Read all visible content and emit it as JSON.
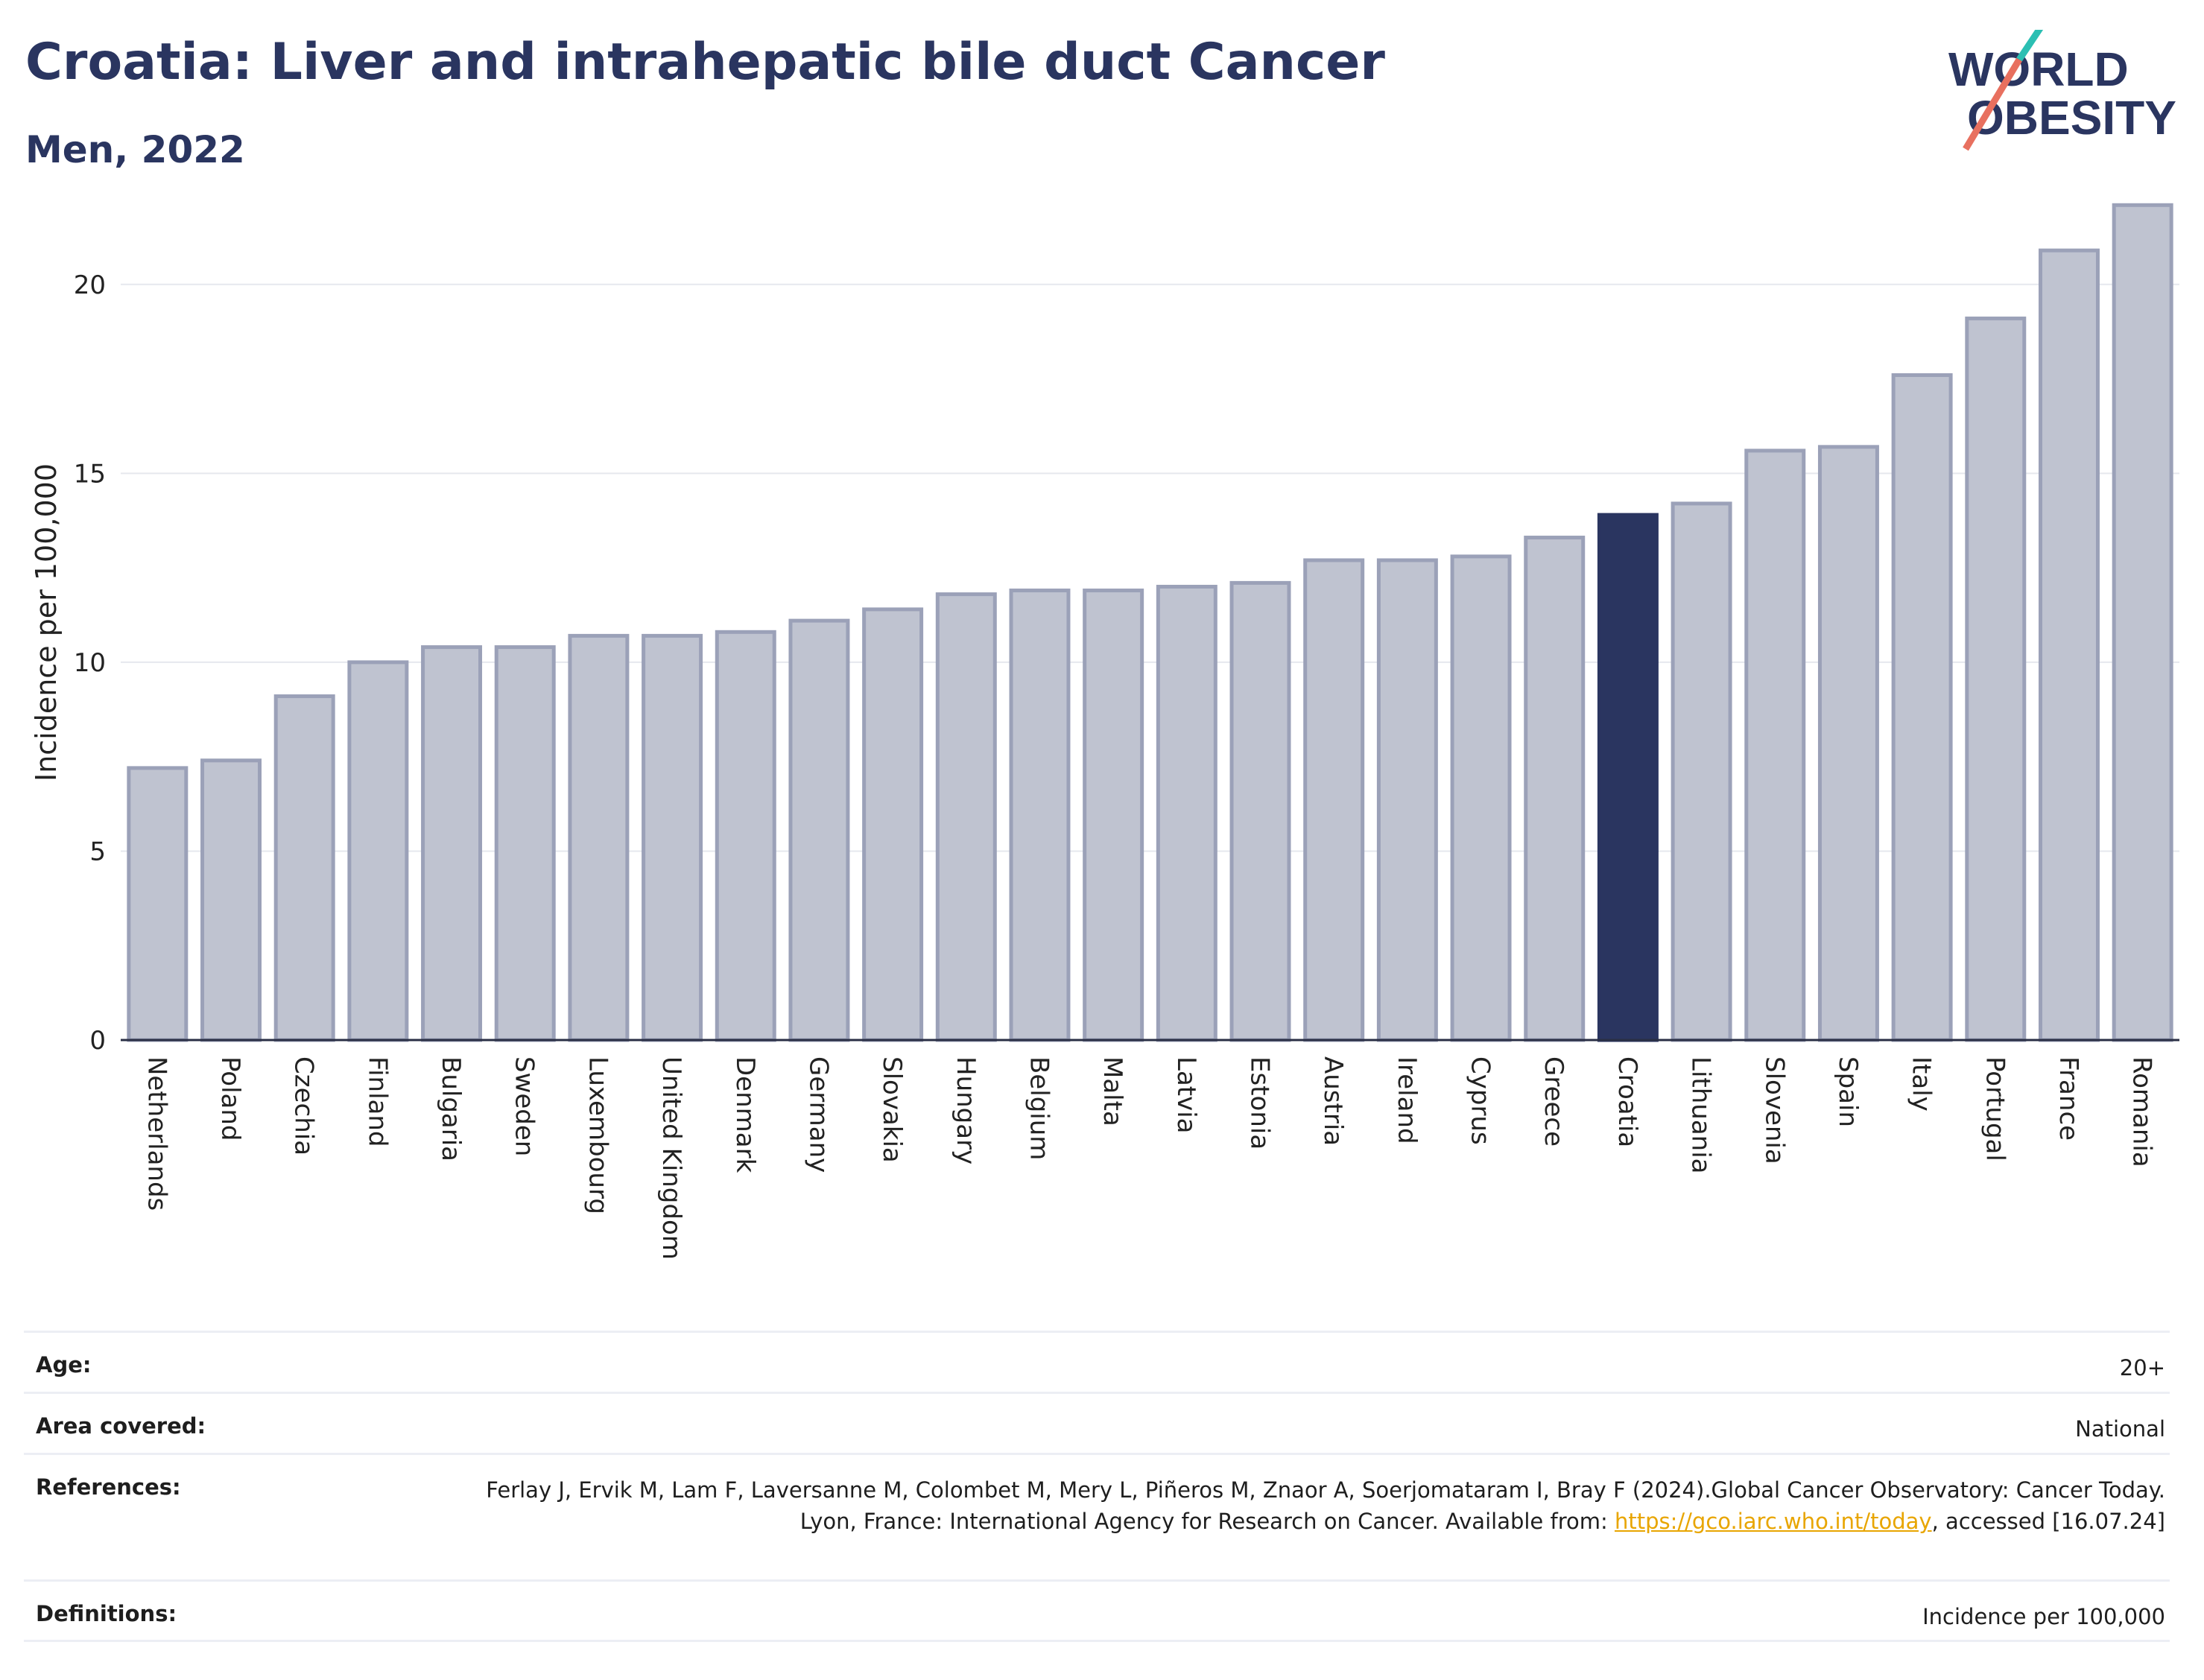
{
  "header": {
    "title": "Croatia: Liver and intrahepatic bile duct Cancer",
    "subtitle": "Men, 2022"
  },
  "logo": {
    "line1": "WORLD",
    "line2": "OBESITY"
  },
  "colors": {
    "bar_fill": "#bfc3d0",
    "bar_stroke": "#9ba1b8",
    "highlight": "#2a3560",
    "title": "#2a3560",
    "gridline": "#e6e8ee",
    "logo_teal": "#2bbfb3",
    "logo_coral": "#e8705f",
    "link": "#e8a500"
  },
  "chart_data": {
    "type": "bar",
    "ylabel": "Incidence per 100,000",
    "xlabel": "",
    "ylim": [
      0,
      22.5
    ],
    "yticks": [
      0,
      5,
      10,
      15,
      20
    ],
    "grid": true,
    "highlight_category": "Croatia",
    "categories": [
      "Netherlands",
      "Poland",
      "Czechia",
      "Finland",
      "Bulgaria",
      "Sweden",
      "Luxembourg",
      "United Kingdom",
      "Denmark",
      "Germany",
      "Slovakia",
      "Hungary",
      "Belgium",
      "Malta",
      "Latvia",
      "Estonia",
      "Austria",
      "Ireland",
      "Cyprus",
      "Greece",
      "Croatia",
      "Lithuania",
      "Slovenia",
      "Spain",
      "Italy",
      "Portugal",
      "France",
      "Romania"
    ],
    "values": [
      7.2,
      7.4,
      9.1,
      10.0,
      10.4,
      10.4,
      10.7,
      10.7,
      10.8,
      11.1,
      11.4,
      11.8,
      11.9,
      11.9,
      12.0,
      12.1,
      12.7,
      12.7,
      12.8,
      13.3,
      13.9,
      14.2,
      15.6,
      15.7,
      17.6,
      19.1,
      20.9,
      22.1
    ]
  },
  "meta": {
    "age": {
      "label": "Age:",
      "value": "20+"
    },
    "area": {
      "label": "Area covered:",
      "value": "National"
    },
    "references": {
      "label": "References:",
      "text_before": "Ferlay J, Ervik M, Lam F, Laversanne M, Colombet M, Mery L, Piñeros M, Znaor A, Soerjomataram I, Bray F (2024).Global Cancer Observatory: Cancer Today. Lyon, France: International Agency for Research on Cancer. Available from: ",
      "link": "https://gco.iarc.who.int/today",
      "text_after": ", accessed [16.07.24]"
    },
    "definitions": {
      "label": "Definitions:",
      "value": "Incidence per 100,000"
    }
  }
}
